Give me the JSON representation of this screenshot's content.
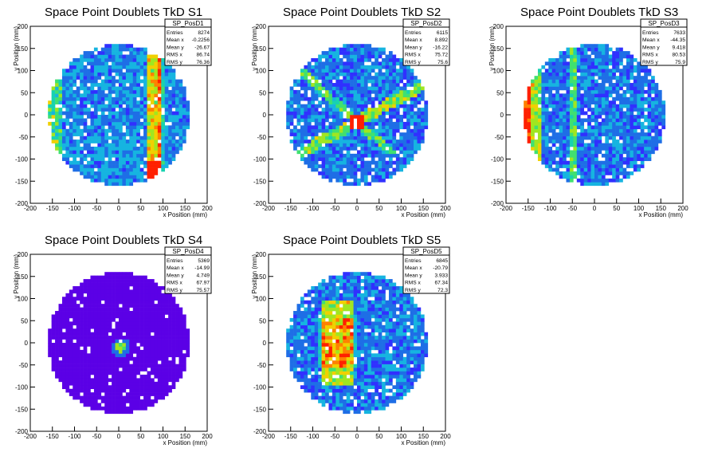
{
  "chart_data": [
    {
      "type": "heatmap",
      "title": "Space Point Doublets TkD S1",
      "xlabel": "x Position (mm)",
      "ylabel": "y Position (mm)",
      "xlim": [
        -200,
        200
      ],
      "ylim": [
        -200,
        200
      ],
      "xticks": [
        -200,
        -150,
        -100,
        -50,
        0,
        50,
        100,
        150,
        200
      ],
      "yticks": [
        -200,
        -150,
        -100,
        -50,
        0,
        50,
        100,
        150,
        200
      ],
      "stats": {
        "name": "SP_PosD1",
        "rows": [
          [
            "Entries",
            "8274"
          ],
          [
            "Mean x",
            "-0.2256"
          ],
          [
            "Mean y",
            "-26.67"
          ],
          [
            "RMS x",
            "86.74"
          ],
          [
            "RMS y",
            "76.36"
          ]
        ]
      },
      "pattern": "vertical-band-x80",
      "features": {
        "hot_x": 80,
        "edge_x": -145
      }
    },
    {
      "type": "heatmap",
      "title": "Space Point Doublets TkD S2",
      "xlabel": "x Position (mm)",
      "ylabel": "y Position (mm)",
      "xlim": [
        -200,
        200
      ],
      "ylim": [
        -200,
        200
      ],
      "xticks": [
        -200,
        -150,
        -100,
        -50,
        0,
        50,
        100,
        150,
        200
      ],
      "yticks": [
        -200,
        -150,
        -100,
        -50,
        0,
        50,
        100,
        150,
        200
      ],
      "stats": {
        "name": "SP_PosD2",
        "rows": [
          [
            "Entries",
            "6115"
          ],
          [
            "Mean x",
            "8.892"
          ],
          [
            "Mean y",
            "-16.22"
          ],
          [
            "RMS x",
            "75.72"
          ],
          [
            "RMS y",
            "75.6"
          ]
        ]
      },
      "pattern": "diagonal-cross",
      "features": {
        "center_x": 0,
        "center_y": -15
      }
    },
    {
      "type": "heatmap",
      "title": "Space Point Doublets TkD S3",
      "xlabel": "x Position (mm)",
      "ylabel": "y Position (mm)",
      "xlim": [
        -200,
        200
      ],
      "ylim": [
        -200,
        200
      ],
      "xticks": [
        -200,
        -150,
        -100,
        -50,
        0,
        50,
        100,
        150,
        200
      ],
      "yticks": [
        -200,
        -150,
        -100,
        -50,
        0,
        50,
        100,
        150,
        200
      ],
      "stats": {
        "name": "SP_PosD3",
        "rows": [
          [
            "Entries",
            "7633"
          ],
          [
            "Mean x",
            "-44.35"
          ],
          [
            "Mean y",
            "9.418"
          ],
          [
            "RMS x",
            "80.53"
          ],
          [
            "RMS y",
            "75.9"
          ]
        ]
      },
      "pattern": "left-edge-hot",
      "features": {
        "hot_x": -155,
        "band_x": -45
      }
    },
    {
      "type": "heatmap",
      "title": "Space Point Doublets TkD S4",
      "xlabel": "x Position (mm)",
      "ylabel": "y Position (mm)",
      "xlim": [
        -200,
        200
      ],
      "ylim": [
        -200,
        200
      ],
      "xticks": [
        -200,
        -150,
        -100,
        -50,
        0,
        50,
        100,
        150,
        200
      ],
      "yticks": [
        -200,
        -150,
        -100,
        -50,
        0,
        50,
        100,
        150,
        200
      ],
      "stats": {
        "name": "SP_PosD4",
        "rows": [
          [
            "Entries",
            "5369"
          ],
          [
            "Mean x",
            "-14.99"
          ],
          [
            "Mean y",
            "4.749"
          ],
          [
            "RMS x",
            "67.97"
          ],
          [
            "RMS y",
            "75.57"
          ]
        ]
      },
      "pattern": "uniform-low-center-spot",
      "features": {
        "spot_x": 5,
        "spot_y": -10
      }
    },
    {
      "type": "heatmap",
      "title": "Space Point Doublets TkD S5",
      "xlabel": "x Position (mm)",
      "ylabel": "y Position (mm)",
      "xlim": [
        -200,
        200
      ],
      "ylim": [
        -200,
        200
      ],
      "xticks": [
        -200,
        -150,
        -100,
        -50,
        0,
        50,
        100,
        150,
        200
      ],
      "yticks": [
        -200,
        -150,
        -100,
        -50,
        0,
        50,
        100,
        150,
        200
      ],
      "stats": {
        "name": "SP_PosD5",
        "rows": [
          [
            "Entries",
            "6845"
          ],
          [
            "Mean x",
            "-20.79"
          ],
          [
            "Mean y",
            "3.933"
          ],
          [
            "RMS x",
            "67.34"
          ],
          [
            "RMS y",
            "72.3"
          ]
        ]
      },
      "pattern": "vertical-bands-left",
      "features": {
        "band_x": [
          -70,
          -45,
          -20
        ]
      }
    }
  ],
  "style": {
    "background": "#ffffff",
    "frame": "#000000",
    "palette": [
      "#5b00e6",
      "#3030ff",
      "#1e6ee6",
      "#16b4e0",
      "#18d2b0",
      "#40e070",
      "#a0e620",
      "#f0d000",
      "#ff8000",
      "#ff2000"
    ]
  }
}
